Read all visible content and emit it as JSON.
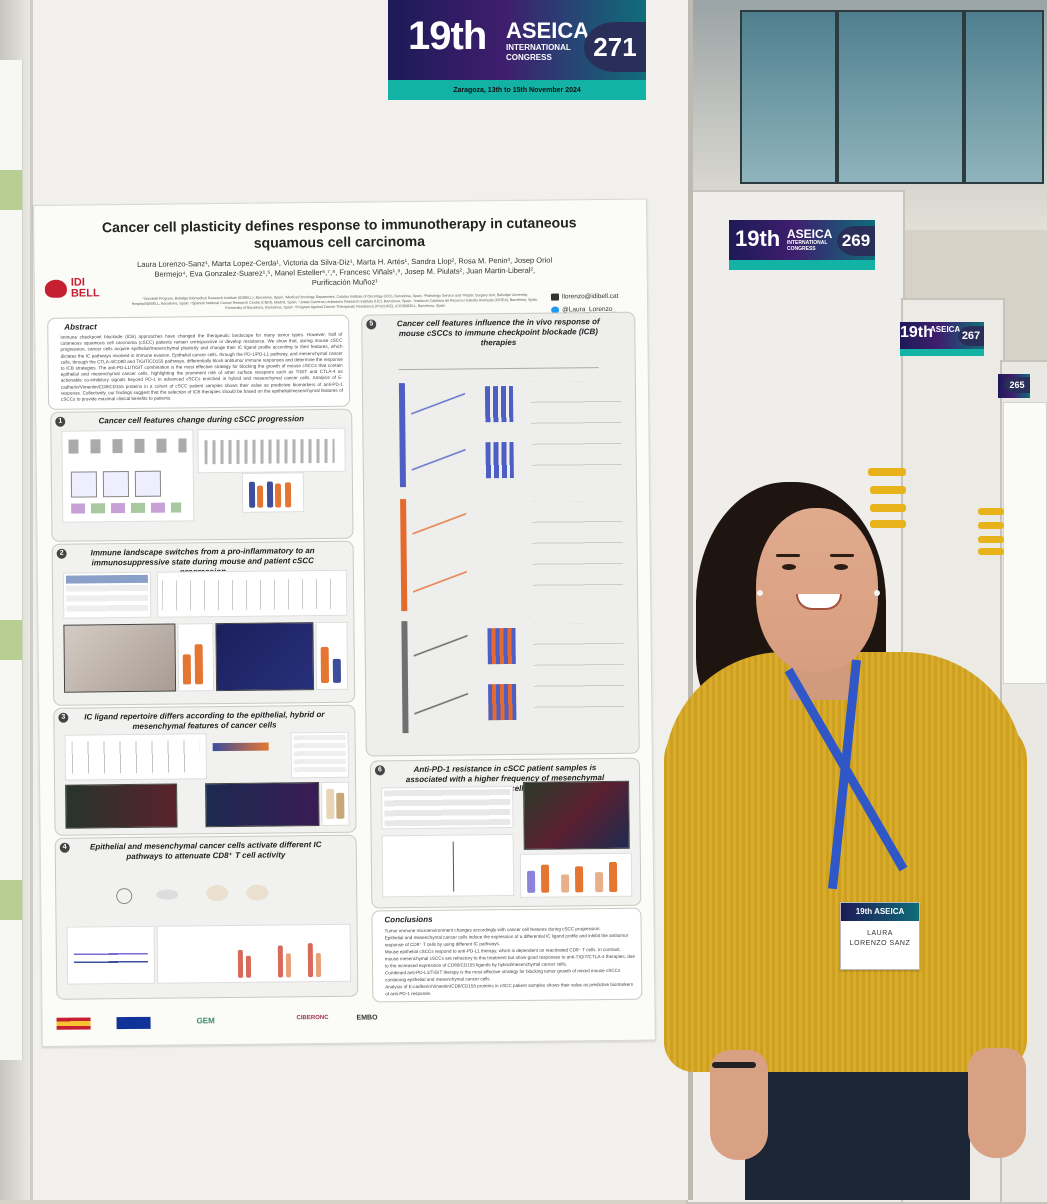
{
  "banner_main": {
    "edition": "19th",
    "name": "ASEICA",
    "sub_line1": "INTERNATIONAL",
    "sub_line2": "CONGRESS",
    "number": "271",
    "venue": "Zaragoza, 13th to 15th November 2024"
  },
  "banner_right1": {
    "edition": "19th",
    "name": "ASEICA",
    "sub_line1": "INTERNATIONAL",
    "sub_line2": "CONGRESS",
    "number": "269"
  },
  "banner_right2": {
    "edition": "19th",
    "name": "ASEICA",
    "number": "267"
  },
  "banner_right3": {
    "number": "265"
  },
  "poster": {
    "title": "Cancer cell plasticity defines response to immunotherapy in cutaneous squamous cell carcinoma",
    "authors": "Laura Lorenzo-Sanz¹, Marta Lopez-Cerda¹, Victoria da Silva-Diz¹, Marta H. Artés¹, Sandra Llop², Rosa M. Penin³, Josep Oriol Bermejo⁴, Eva Gonzalez-Suarez¹,⁵, Manel Esteller⁶,⁷,⁸, Francesc Viñals¹,⁹, Josep M. Piulats², Juan Martin-Liberal², Purificación Muñoz¹",
    "affiliations": "¹Oncobell Program, Bellvitge Biomedical Research Institute (IDIBELL), Barcelona, Spain. ²Medical Oncology Department, Catalan Institute of Oncology (ICO), Barcelona, Spain. ³Pathology Service and ⁴Plastic Surgery Unit, Bellvitge University Hospital/IDIBELL, Barcelona, Spain. ⁵Spanish National Cancer Research Centre (CNIO), Madrid, Spain. ⁶Josep Carreras Leukaemia Research Institute (IJC), Barcelona, Spain. ⁷Institució Catalana de Recerca i Estudis Avançats (ICREA), Barcelona, Spain. ⁸University of Barcelona, Barcelona, Spain. ⁹Program Against Cancer Therapeutic Resistance (ProCURE), ICO/IDIBELL, Barcelona, Spain",
    "logo_text": "IDI BELL",
    "email": "llorenzo@idibell.cat",
    "twitter": "@Laura_Lorenzo_",
    "abstract_heading": "Abstract",
    "abstract": "Immune checkpoint blockade (ICB) approaches have changed the therapeutic landscape for many tumor types. However, half of cutaneous squamous cell carcinoma (cSCC) patients remain unresponsive or develop resistance. We show that, during mouse cSCC progression, cancer cells acquire epithelial/mesenchymal plasticity and change their IC ligand profile according to their features, which dictates the IC pathways involved in immune evasion. Epithelial cancer cells, through the PD-1/PD-L1 pathway, and mesenchymal cancer cells, through the CTLA-4/CD80 and TIGIT/CD155 pathways, differentially block antitumor immune responses and determine the response to ICB strategies. The anti-PD-L1/TIGIT combination is the most effective strategy for blocking the growth of mouse cSCCs that contain epithelial and mesenchymal cancer cells, highlighting the prominent role of other surface receptors such as TIGIT and CTLA-4 as actionable co-inhibitory signals beyond PD-1 in advanced cSCCs enriched in hybrid and mesenchymal cancer cells. Analysis of E-cadherin/Vimentin/CD8/CD155 proteins in a cohort of cSCC patient samples shows their value as predictive biomarkers of anti-PD-1 response. Collectively, our findings suggest that the selection of ICB therapies should be based on the epithelial/mesenchymal features of cSCCs to provide maximal clinical benefits to patients.",
    "sections": [
      {
        "num": "1",
        "title": "Cancer cell features change during cSCC progression"
      },
      {
        "num": "2",
        "title": "Immune landscape switches from a pro-inflammatory to an immunosuppressive state during mouse and patient cSCC progression"
      },
      {
        "num": "3",
        "title": "IC ligand repertoire differs according to the epithelial, hybrid or mesenchymal features of cancer cells"
      },
      {
        "num": "4",
        "title": "Epithelial and mesenchymal cancer cells activate different IC pathways to attenuate CD8⁺ T cell activity"
      },
      {
        "num": "5",
        "title": "Cancer cell features influence the in vivo response of mouse cSCCs to immune checkpoint blockade (ICB) therapies"
      },
      {
        "num": "6",
        "title": "Anti-PD-1 resistance in cSCC patient samples is associated with a higher frequency of mesenchymal cancer cells"
      }
    ],
    "conclusions_heading": "Conclusions",
    "conclusions": [
      "Tumor immune microenvironment changes accordingly with cancer cell features during cSCC progression.",
      "Epithelial and mesenchymal cancer cells induce the expression of a differential IC ligand profile and inhibit the antitumor response of CD8⁺ T cells by using different IC pathways.",
      "Mouse epithelial cSCCs respond to anti-PD-L1 therapy, which is dependent on reactivated CD8⁺ T cells. In contrast, mouse mesenchymal cSCCs are refractory to this treatment but show good responses to anti-TIGIT/CTLA-4 therapies, due to the increased expression of CD80/CD155 ligands by hybrid/mesenchymal cancer cells.",
      "Combined anti-PD-L1/TIGIT therapy is the most effective strategy for blocking tumor growth of mixed mouse cSCCs containing epithelial and mesenchymal cancer cells.",
      "Analysis of E-cadherin/Vimentin/CD8/CD155 proteins in cSCC patient samples shows their value as predictive biomarkers of anti-PD-1 response."
    ],
    "footer_logos": [
      "GEM",
      "CIBERONC",
      "EMBO"
    ]
  },
  "badge": {
    "header": "19th ASEICA",
    "name_line1": "LAURA",
    "name_line2": "LORENZO SANZ"
  }
}
